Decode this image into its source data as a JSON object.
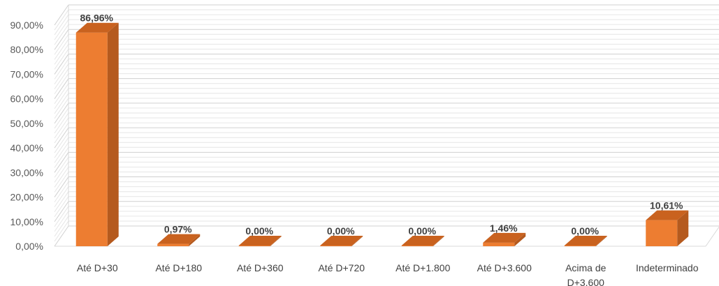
{
  "chart_data": {
    "type": "bar",
    "style": "3d-column",
    "title": "",
    "xlabel": "",
    "ylabel": "",
    "categories": [
      [
        "Até D+30"
      ],
      [
        "Até D+180"
      ],
      [
        "Até D+360"
      ],
      [
        "Até D+720"
      ],
      [
        "Até D+1.800"
      ],
      [
        "Até D+3.600"
      ],
      [
        "Acima de",
        "D+3.600"
      ],
      [
        "Indeterminado"
      ]
    ],
    "values": [
      86.96,
      0.97,
      0.0,
      0.0,
      0.0,
      1.46,
      0.0,
      10.61
    ],
    "data_labels": [
      "86,96%",
      "0,97%",
      "0,00%",
      "0,00%",
      "0,00%",
      "1,46%",
      "0,00%",
      "10,61%"
    ],
    "ylim": [
      0,
      90
    ],
    "yticks": [
      0,
      10,
      20,
      30,
      40,
      50,
      60,
      70,
      80,
      90
    ],
    "ytick_labels": [
      "0,00%",
      "10,00%",
      "20,00%",
      "30,00%",
      "40,00%",
      "50,00%",
      "60,00%",
      "70,00%",
      "80,00%",
      "90,00%"
    ],
    "grid": true,
    "legend": "none",
    "colors": {
      "bar_front": "#ED7D31",
      "bar_side": "#B55A1E",
      "bar_top": "#C9621F",
      "grid": "#D9D9D9"
    }
  }
}
